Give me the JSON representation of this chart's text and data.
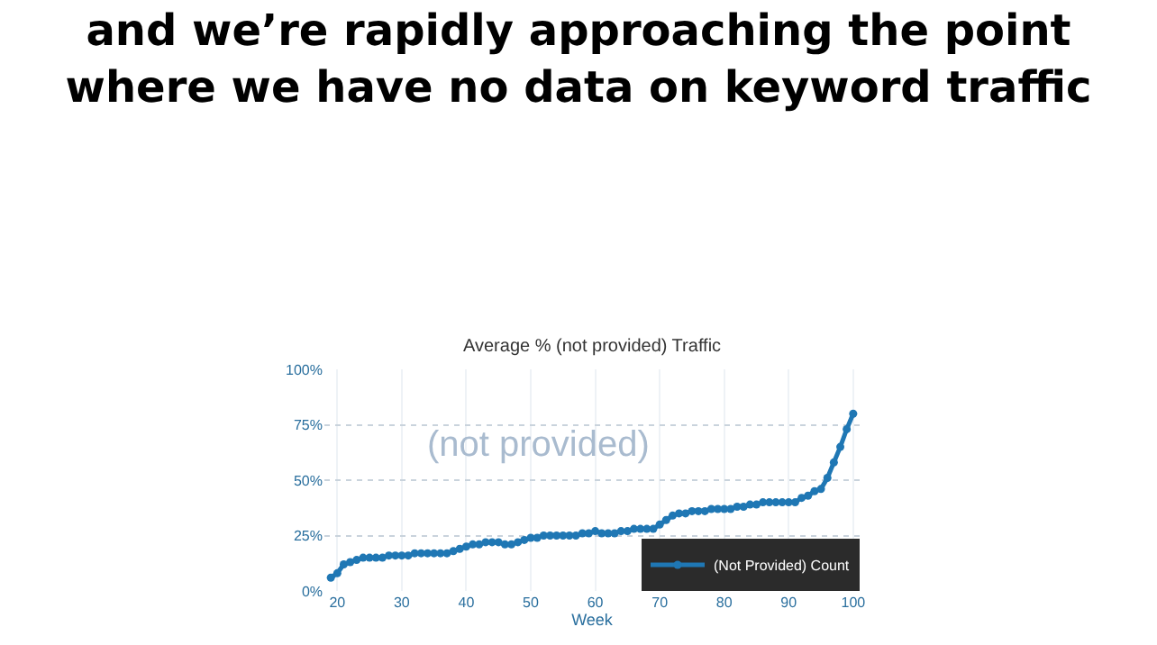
{
  "chart_data": {
    "type": "line",
    "title": "and we’re rapidly approaching the point\nwhere we have no data on keyword traffic",
    "subtitle": "Average % (not provided) Traffic",
    "xlabel": "Week",
    "annotations": [
      "(not provided)"
    ],
    "x": [
      19,
      20,
      21,
      22,
      23,
      24,
      25,
      26,
      27,
      28,
      29,
      30,
      31,
      32,
      33,
      34,
      35,
      36,
      37,
      38,
      39,
      40,
      41,
      42,
      43,
      44,
      45,
      46,
      47,
      48,
      49,
      50,
      51,
      52,
      53,
      54,
      55,
      56,
      57,
      58,
      59,
      60,
      61,
      62,
      63,
      64,
      65,
      66,
      67,
      68,
      69,
      70,
      71,
      72,
      73,
      74,
      75,
      76,
      77,
      78,
      79,
      80,
      81,
      82,
      83,
      84,
      85,
      86,
      87,
      88,
      89,
      90,
      91,
      92,
      93,
      94,
      95,
      96,
      97,
      98,
      99,
      100
    ],
    "series": [
      {
        "name": "(Not Provided) Count",
        "color": "#1f77b4",
        "values": [
          6,
          8,
          12,
          13,
          14,
          15,
          15,
          15,
          15,
          16,
          16,
          16,
          16,
          17,
          17,
          17,
          17,
          17,
          17,
          18,
          19,
          20,
          21,
          21,
          22,
          22,
          22,
          21,
          21,
          22,
          23,
          24,
          24,
          25,
          25,
          25,
          25,
          25,
          25,
          26,
          26,
          27,
          26,
          26,
          26,
          27,
          27,
          28,
          28,
          28,
          28,
          30,
          32,
          34,
          35,
          35,
          36,
          36,
          36,
          37,
          37,
          37,
          37,
          38,
          38,
          39,
          39,
          40,
          40,
          40,
          40,
          40,
          40,
          42,
          43,
          45,
          46,
          51,
          58,
          65,
          73,
          80
        ]
      }
    ],
    "xlim": [
      18,
      101
    ],
    "xticks": [
      20,
      30,
      40,
      50,
      60,
      70,
      80,
      90,
      100
    ],
    "ylim": [
      0,
      100
    ],
    "yticks": [
      {
        "value": 0,
        "label": "0%"
      },
      {
        "value": 25,
        "label": "25%"
      },
      {
        "value": 50,
        "label": "50%"
      },
      {
        "value": 75,
        "label": "75%"
      },
      {
        "value": 100,
        "label": "100%"
      }
    ],
    "grid": true,
    "legend": "bottom right",
    "marker": "circle",
    "line_style": "solid"
  }
}
